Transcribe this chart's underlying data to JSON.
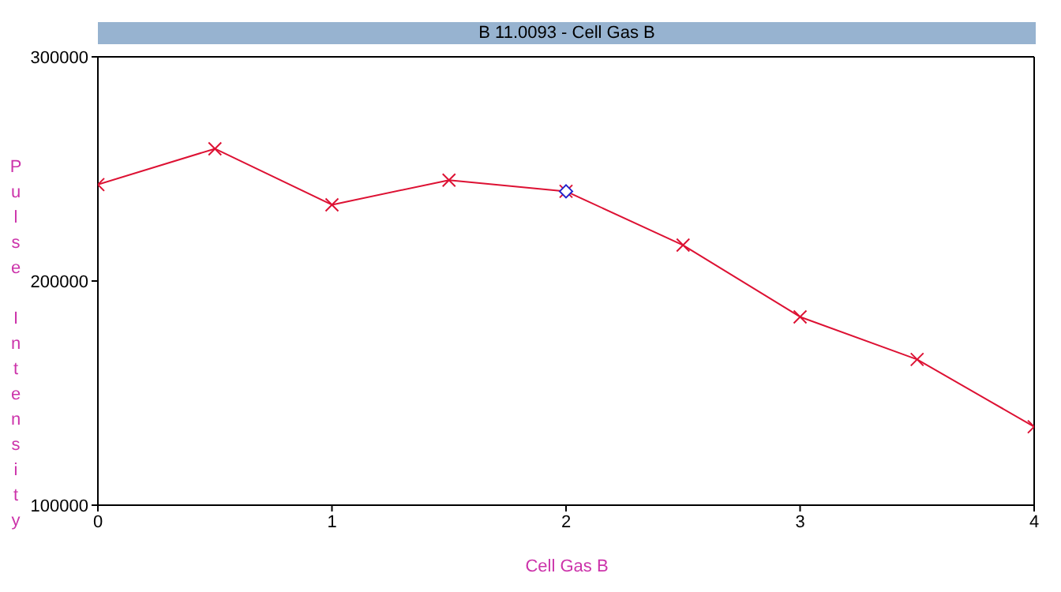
{
  "chart_data": {
    "type": "line",
    "title": "B 11.0093 - Cell Gas B",
    "xlabel": "Cell Gas B",
    "ylabel": "Pulse Intensity",
    "x": [
      0,
      0.5,
      1,
      1.5,
      2,
      2.5,
      3,
      3.5,
      4
    ],
    "series": [
      {
        "color": "#dd1133",
        "marker": "cross",
        "values": [
          243000,
          259000,
          234000,
          245000,
          240000,
          216000,
          184000,
          165000,
          135000
        ]
      },
      {
        "type": "scatter",
        "color": "#2222cc",
        "marker": "diamond",
        "x": [
          2
        ],
        "values": [
          240000
        ]
      }
    ],
    "xlim": [
      0,
      4
    ],
    "xticks": [
      0,
      1,
      2,
      3,
      4
    ],
    "ylim": [
      100000,
      300000
    ],
    "yticks": [
      100000,
      200000,
      300000
    ],
    "grid": false,
    "legend": false
  }
}
